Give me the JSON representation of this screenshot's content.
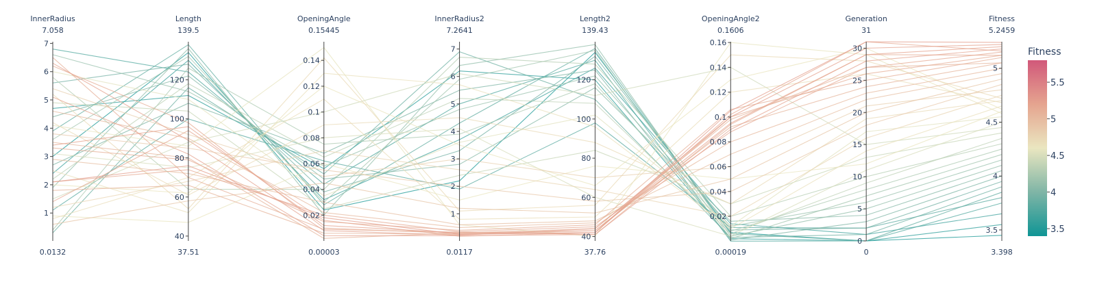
{
  "chart_data": {
    "type": "parallel_coordinates",
    "color_dimension": "Fitness",
    "colorscale": [
      "#0f9595",
      "#7fb5a6",
      "#eae6c0",
      "#e5a48f",
      "#d1587a"
    ],
    "colorbar": {
      "title": "Fitness",
      "range": [
        3.398,
        5.8
      ],
      "ticks": [
        3.5,
        4,
        4.5,
        5,
        5.5
      ]
    },
    "dimensions": [
      {
        "label": "InnerRadius",
        "range": [
          0.0132,
          7.058
        ],
        "max_label": "7.058",
        "min_label": "0.0132",
        "ticks": [
          1,
          2,
          3,
          4,
          5,
          6,
          7
        ]
      },
      {
        "label": "Length",
        "range": [
          37.51,
          139.5
        ],
        "max_label": "139.5",
        "min_label": "37.51",
        "ticks": [
          40,
          60,
          80,
          100,
          120
        ]
      },
      {
        "label": "OpeningAngle",
        "range": [
          3e-05,
          0.15445
        ],
        "max_label": "0.15445",
        "min_label": "0.00003",
        "ticks": [
          0.02,
          0.04,
          0.06,
          0.08,
          0.1,
          0.12,
          0.14
        ]
      },
      {
        "label": "InnerRadius2",
        "range": [
          0.0117,
          7.2641
        ],
        "max_label": "7.2641",
        "min_label": "0.0117",
        "ticks": [
          1,
          2,
          3,
          4,
          5,
          6,
          7
        ]
      },
      {
        "label": "Length2",
        "range": [
          37.76,
          139.43
        ],
        "max_label": "139.43",
        "min_label": "37.76",
        "ticks": [
          40,
          60,
          80,
          100,
          120
        ]
      },
      {
        "label": "OpeningAngle2",
        "range": [
          0.00019,
          0.1606
        ],
        "max_label": "0.1606",
        "min_label": "0.00019",
        "ticks": [
          0.02,
          0.04,
          0.06,
          0.08,
          0.1,
          0.12,
          0.14,
          0.16
        ]
      },
      {
        "label": "Generation",
        "range": [
          0,
          31
        ],
        "max_label": "31",
        "min_label": "0",
        "ticks": [
          0,
          5,
          10,
          15,
          20,
          25,
          30
        ]
      },
      {
        "label": "Fitness",
        "range": [
          3.398,
          5.2459
        ],
        "max_label": "5.2459",
        "min_label": "3.398",
        "ticks": [
          3.5,
          4,
          4.5,
          5
        ]
      }
    ],
    "records": [
      [
        2.1,
        76,
        0.018,
        0.25,
        42,
        0.105,
        31,
        5.24
      ],
      [
        6.3,
        89,
        0.008,
        0.22,
        44,
        0.1,
        30,
        5.22
      ],
      [
        3.4,
        96,
        0.012,
        0.3,
        43,
        0.095,
        29,
        5.2
      ],
      [
        5.1,
        82,
        0.004,
        0.2,
        41,
        0.09,
        28,
        5.18
      ],
      [
        2.1,
        74,
        0.02,
        0.35,
        45,
        0.088,
        27,
        5.15
      ],
      [
        6.2,
        98,
        0.01,
        0.28,
        42,
        0.1,
        26,
        5.12
      ],
      [
        3.3,
        79,
        0.015,
        0.4,
        46,
        0.106,
        25,
        5.1
      ],
      [
        1.8,
        66,
        0.006,
        0.25,
        43,
        0.092,
        24,
        5.05
      ],
      [
        4.6,
        90,
        0.022,
        0.5,
        47,
        0.08,
        23,
        5.0
      ],
      [
        2.9,
        72,
        0.03,
        0.6,
        48,
        0.07,
        22,
        4.95
      ],
      [
        0.6,
        58,
        0.045,
        1.2,
        52,
        0.05,
        20,
        4.9
      ],
      [
        3.8,
        85,
        0.055,
        2.0,
        58,
        0.04,
        18,
        4.85
      ],
      [
        5.4,
        92,
        0.05,
        3.0,
        70,
        0.06,
        21,
        4.8
      ],
      [
        1.2,
        68,
        0.07,
        2.6,
        64,
        0.02,
        16,
        4.75
      ],
      [
        4.2,
        61,
        0.09,
        4.5,
        88,
        0.03,
        19,
        4.7
      ],
      [
        2.5,
        52,
        0.13,
        5.7,
        96,
        0.01,
        14,
        4.65
      ],
      [
        0.9,
        47,
        0.06,
        1.5,
        76,
        0.05,
        12,
        4.6
      ],
      [
        6.0,
        110,
        0.035,
        3.6,
        102,
        0.012,
        17,
        4.55
      ],
      [
        3.1,
        75,
        0.08,
        4.1,
        60,
        0.004,
        11,
        4.5
      ],
      [
        1.5,
        88,
        0.1,
        6.1,
        112,
        0.14,
        15,
        4.45
      ],
      [
        4.9,
        104,
        0.025,
        2.4,
        84,
        0.03,
        13,
        4.4
      ],
      [
        2.2,
        118,
        0.065,
        5.2,
        108,
        0.006,
        9,
        4.35
      ],
      [
        5.8,
        64,
        0.04,
        6.7,
        128,
        0.02,
        10,
        4.3
      ],
      [
        0.4,
        126,
        0.075,
        3.9,
        118,
        0.008,
        8,
        4.25
      ],
      [
        3.6,
        132,
        0.03,
        5.9,
        135,
        0.002,
        7,
        4.2
      ],
      [
        6.6,
        114,
        0.058,
        4.8,
        122,
        0.012,
        6,
        4.15
      ],
      [
        1.9,
        136,
        0.02,
        6.4,
        138,
        0.004,
        5,
        4.1
      ],
      [
        4.4,
        122,
        0.048,
        2.8,
        116,
        0.016,
        4,
        4.05
      ],
      [
        2.7,
        108,
        0.068,
        5.5,
        125,
        0.001,
        3,
        4.0
      ],
      [
        5.6,
        128,
        0.038,
        3.3,
        132,
        0.009,
        2,
        3.95
      ],
      [
        0.3,
        116,
        0.052,
        6.9,
        110,
        0.003,
        1,
        3.9
      ],
      [
        3.9,
        138,
        0.028,
        4.3,
        136,
        0.006,
        0,
        3.85
      ],
      [
        1.1,
        100,
        0.062,
        1.9,
        98,
        0.011,
        2,
        3.8
      ],
      [
        6.8,
        124,
        0.044,
        5.0,
        130,
        0.0,
        0,
        3.75
      ],
      [
        2.4,
        130,
        0.032,
        3.7,
        126,
        0.014,
        1,
        3.65
      ],
      [
        4.7,
        112,
        0.056,
        6.2,
        120,
        0.002,
        0,
        3.55
      ],
      [
        3.0,
        134,
        0.024,
        2.2,
        134,
        0.007,
        0,
        3.45
      ],
      [
        0.8,
        70,
        0.11,
        0.8,
        50,
        0.12,
        26,
        4.68
      ],
      [
        5.2,
        54,
        0.142,
        1.1,
        56,
        0.15,
        28,
        4.72
      ],
      [
        2.0,
        62,
        0.12,
        3.5,
        66,
        0.13,
        30,
        4.62
      ],
      [
        4.1,
        86,
        0.15,
        0.6,
        40,
        0.16,
        29,
        4.58
      ],
      [
        3.5,
        80,
        0.002,
        0.3,
        44,
        0.098,
        27,
        5.05
      ],
      [
        1.4,
        94,
        0.016,
        0.18,
        42,
        0.102,
        31,
        5.16
      ],
      [
        6.5,
        70,
        0.009,
        0.33,
        41,
        0.094,
        29,
        5.12
      ]
    ]
  }
}
